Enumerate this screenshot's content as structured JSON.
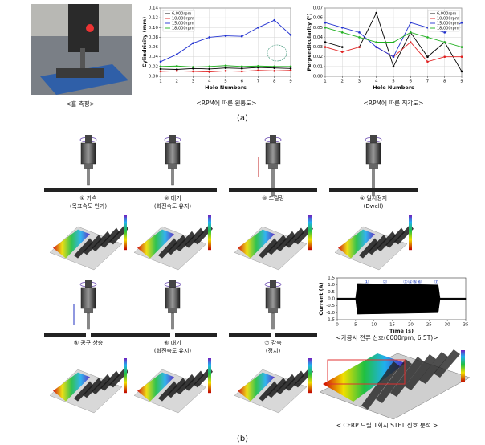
{
  "figure": {
    "a": {
      "captions": [
        "<홀 측정>",
        "<RPM에 따른 원통도>",
        "<RPM에 따른 직각도>"
      ],
      "label": "(a)"
    },
    "b": {
      "steps": [
        {
          "title": "① 가속",
          "note": "(목표속도 인가)"
        },
        {
          "title": "② 대기",
          "note": "(회전속도 유지)"
        },
        {
          "title": "③ 드릴링"
        },
        {
          "title": "④ 일시정지",
          "note": "(Dwell)"
        },
        {
          "title": "⑤ 공구 상승"
        },
        {
          "title": "⑥ 대기",
          "note": "(회전속도 유지)"
        },
        {
          "title": "⑦ 감속",
          "note": "(정지)"
        }
      ],
      "current_caption": "<가공시 전류 신호(6000rpm, 6.5T)>",
      "stft_caption": "< CFRP 드릴 1회시 STFT 신호 분석 >",
      "stft_annotations": [
        "가속",
        "정속",
        "감속"
      ],
      "label": "(b)"
    }
  },
  "chart_data": [
    {
      "type": "line",
      "x_label": "Hole Numbers",
      "y_label": "Cylindricity (mm)",
      "x": [
        1,
        2,
        3,
        4,
        5,
        6,
        7,
        8,
        9
      ],
      "xlim": [
        1,
        9
      ],
      "xticks": [
        1,
        2,
        3,
        4,
        5,
        6,
        7,
        8,
        9
      ],
      "ylim": [
        0,
        0.14
      ],
      "yticks": [
        {
          "value": 0,
          "label": "0.00"
        },
        0.02,
        0.04,
        0.06,
        0.08,
        {
          "value": 0.1,
          "label": "0.10"
        },
        0.12,
        0.14
      ],
      "grid": true,
      "legend": "upper-left",
      "series": [
        {
          "name": "6,000rpm",
          "color": "#000000",
          "values": [
            0.015,
            0.014,
            0.016,
            0.015,
            0.017,
            0.016,
            0.018,
            0.017,
            0.016
          ]
        },
        {
          "name": "10,000rpm",
          "color": "#e02020",
          "values": [
            0.01,
            0.011,
            0.01,
            0.009,
            0.011,
            0.01,
            0.012,
            0.011,
            0.012
          ]
        },
        {
          "name": "15,000rpm",
          "color": "#2030d0",
          "values": [
            0.03,
            0.045,
            0.068,
            0.08,
            0.083,
            0.082,
            0.1,
            0.115,
            0.085
          ]
        },
        {
          "name": "18,000rpm",
          "color": "#20b020",
          "values": [
            0.02,
            0.021,
            0.019,
            0.02,
            0.022,
            0.02,
            0.021,
            0.02,
            0.02
          ]
        }
      ]
    },
    {
      "type": "line",
      "x_label": "Hole Numbers",
      "y_label": "Perpendicularity (°)",
      "x": [
        1,
        2,
        3,
        4,
        5,
        6,
        7,
        8,
        9
      ],
      "xlim": [
        1,
        9
      ],
      "xticks": [
        1,
        2,
        3,
        4,
        5,
        6,
        7,
        8,
        9
      ],
      "ylim": [
        0,
        0.07
      ],
      "yticks": [
        {
          "value": 0,
          "label": "0.00"
        },
        0.01,
        0.02,
        0.03,
        0.04,
        0.05,
        0.06,
        0.07
      ],
      "grid": true,
      "legend": "upper-right",
      "series": [
        {
          "name": "6,000rpm",
          "color": "#000000",
          "values": [
            0.035,
            0.03,
            0.03,
            0.065,
            0.01,
            0.045,
            0.02,
            0.035,
            0.005
          ]
        },
        {
          "name": "10,000rpm",
          "color": "#e02020",
          "values": [
            0.03,
            0.025,
            0.03,
            0.03,
            0.02,
            0.035,
            0.015,
            0.02,
            0.02
          ]
        },
        {
          "name": "15,000rpm",
          "color": "#2030d0",
          "values": [
            0.055,
            0.05,
            0.045,
            0.03,
            0.02,
            0.055,
            0.05,
            0.045,
            0.055
          ]
        },
        {
          "name": "18,000rpm",
          "color": "#20b020",
          "values": [
            0.05,
            0.045,
            0.04,
            0.035,
            0.035,
            0.045,
            0.04,
            0.035,
            0.03
          ]
        }
      ]
    },
    {
      "type": "area",
      "x_label": "Time (s)",
      "y_label": "Current (A)",
      "x": [
        0,
        5,
        5.5,
        27.5,
        28,
        35
      ],
      "xlim": [
        0,
        35
      ],
      "xticks": [
        0,
        5,
        10,
        15,
        20,
        25,
        30,
        35
      ],
      "ylim": [
        -1.5,
        1.5
      ],
      "yticks": [
        -1.5,
        {
          "value": -1,
          "label": "-1.0"
        },
        -0.5,
        {
          "value": 0,
          "label": "0.0"
        },
        0.5,
        {
          "value": 1,
          "label": "1.0"
        },
        1.5
      ],
      "grid": false,
      "annotations": [
        "①",
        "②",
        "③④⑤⑥",
        "⑦"
      ],
      "series": [
        {
          "color": "#000000",
          "values": [
            0.05,
            0.05,
            1.1,
            1.0,
            0.05,
            0.05
          ]
        },
        {
          "color": "#000000",
          "values": [
            -0.05,
            -0.05,
            -1.1,
            -1.0,
            -0.05,
            -0.05
          ]
        }
      ]
    }
  ]
}
